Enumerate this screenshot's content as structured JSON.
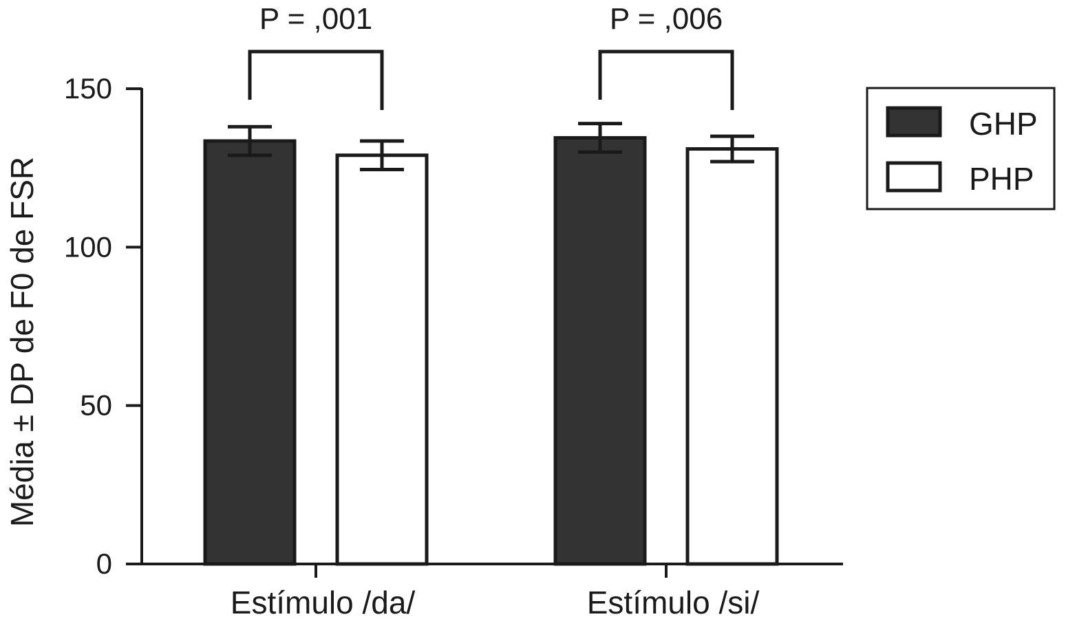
{
  "chart_data": {
    "type": "bar",
    "title": "",
    "xlabel": "",
    "ylabel": "Média ± DP de F0 de FSR",
    "ylim": [
      0,
      150
    ],
    "yticks": [
      0,
      50,
      100,
      150
    ],
    "categories": [
      "Estímulo /da/",
      "Estímulo /si/"
    ],
    "series": [
      {
        "name": "GHP",
        "values": [
          133.5,
          134.5
        ],
        "errors": [
          4.5,
          4.5
        ],
        "color": "#333333"
      },
      {
        "name": "PHP",
        "values": [
          129.0,
          131.0
        ],
        "errors": [
          4.5,
          4.0
        ],
        "color": "#ffffff"
      }
    ],
    "annotations": [
      {
        "category": 0,
        "text": "P = ,001"
      },
      {
        "category": 1,
        "text": "P = ,006"
      }
    ],
    "legend": {
      "position": "top-right"
    },
    "grid": false
  }
}
